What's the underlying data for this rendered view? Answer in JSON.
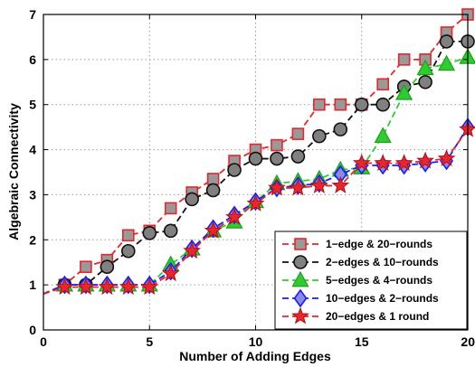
{
  "chart_data": {
    "type": "line",
    "xlabel": "Number of Adding Edges",
    "ylabel": "Algebraic Connectivity",
    "xlim": [
      0,
      20
    ],
    "ylim": [
      0,
      7
    ],
    "xticks": [
      0,
      5,
      10,
      15,
      20
    ],
    "yticks": [
      0,
      1,
      2,
      3,
      4,
      5,
      6,
      7
    ],
    "grid": true,
    "legend_position": "bottom-right",
    "series": [
      {
        "name": "1−edge & 20−rounds",
        "color": "#e8262b",
        "fill": "#999999",
        "marker": "square",
        "x": [
          0,
          1,
          2,
          3,
          4,
          5,
          6,
          7,
          8,
          9,
          10,
          11,
          12,
          13,
          14,
          15,
          16,
          17,
          18,
          19,
          20
        ],
        "y": [
          0.8,
          1.0,
          1.4,
          1.55,
          2.1,
          2.2,
          2.7,
          3.05,
          3.35,
          3.75,
          4.0,
          4.1,
          4.35,
          5.0,
          5.0,
          5.0,
          5.45,
          6.0,
          6.0,
          6.6,
          7.0
        ]
      },
      {
        "name": "2−edges & 10−rounds",
        "color": "#111111",
        "fill": "#808080",
        "marker": "circle",
        "x": [
          0,
          1,
          2,
          3,
          4,
          5,
          6,
          7,
          8,
          9,
          10,
          11,
          12,
          13,
          14,
          15,
          16,
          17,
          18,
          19,
          20
        ],
        "y": [
          0.8,
          1.0,
          1.0,
          1.4,
          1.75,
          2.15,
          2.2,
          2.9,
          3.1,
          3.55,
          3.8,
          3.8,
          3.85,
          4.3,
          4.45,
          5.0,
          5.0,
          5.4,
          5.5,
          6.4,
          6.4
        ]
      },
      {
        "name": "5−edges & 4−rounds",
        "color": "#2ecc2e",
        "fill": "#2ecc2e",
        "marker": "triangle",
        "x": [
          0,
          1,
          2,
          3,
          4,
          5,
          6,
          7,
          8,
          9,
          10,
          11,
          12,
          13,
          14,
          15,
          16,
          17,
          18,
          19,
          20
        ],
        "y": [
          0.8,
          1.0,
          1.0,
          1.0,
          1.0,
          1.0,
          1.45,
          1.8,
          2.2,
          2.4,
          2.85,
          3.25,
          3.3,
          3.35,
          3.55,
          3.6,
          4.3,
          5.25,
          5.8,
          5.9,
          6.05
        ]
      },
      {
        "name": "10−edges & 2−rounds",
        "color": "#1a1aff",
        "fill": "#8a8ae6",
        "marker": "diamond",
        "x": [
          0,
          1,
          2,
          3,
          4,
          5,
          6,
          7,
          8,
          9,
          10,
          11,
          12,
          13,
          14,
          15,
          16,
          17,
          18,
          19,
          20
        ],
        "y": [
          0.8,
          1.0,
          1.0,
          1.0,
          1.0,
          1.0,
          1.3,
          1.8,
          2.25,
          2.55,
          2.85,
          3.15,
          3.2,
          3.25,
          3.45,
          3.65,
          3.65,
          3.65,
          3.7,
          3.75,
          4.5
        ]
      },
      {
        "name": "20−edges & 1 round",
        "color": "#e8262b",
        "fill": "#e8262b",
        "marker": "star",
        "x": [
          0,
          1,
          2,
          3,
          4,
          5,
          6,
          7,
          8,
          9,
          10,
          11,
          12,
          13,
          14,
          15,
          16,
          17,
          18,
          19,
          20
        ],
        "y": [
          0.8,
          0.95,
          0.95,
          0.95,
          0.95,
          0.95,
          1.25,
          1.75,
          2.2,
          2.5,
          2.8,
          3.15,
          3.15,
          3.2,
          3.2,
          3.7,
          3.7,
          3.7,
          3.75,
          3.8,
          4.45
        ]
      }
    ]
  }
}
